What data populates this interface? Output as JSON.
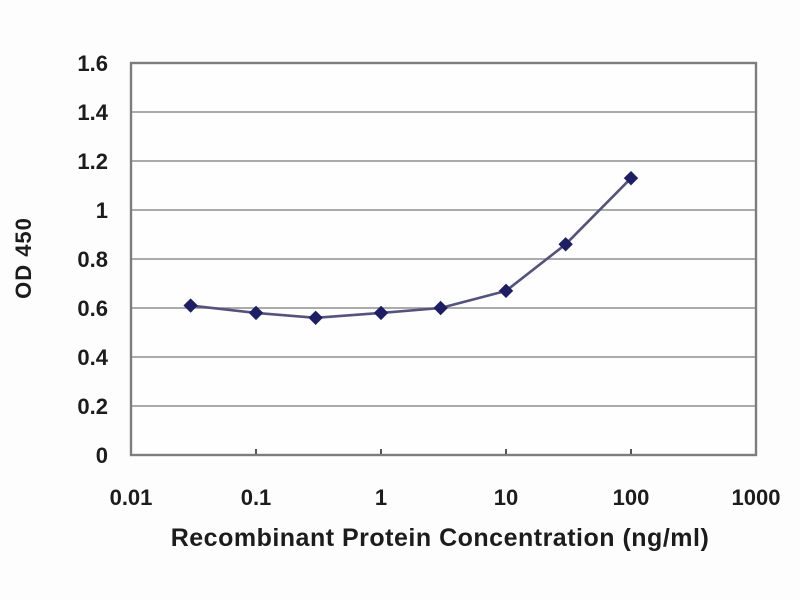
{
  "chart_data": {
    "type": "line",
    "title": "",
    "xlabel": "Recombinant Protein Concentration (ng/ml)",
    "ylabel": "OD 450",
    "x_scale": "log",
    "xlim": [
      0.01,
      1000
    ],
    "ylim": [
      0,
      1.6
    ],
    "grid": "horizontal",
    "legend": "none",
    "x_ticks": {
      "values": [
        0.01,
        0.1,
        1,
        10,
        100,
        1000
      ],
      "labels": [
        "0.01",
        "0.1",
        "1",
        "10",
        "100",
        "1000"
      ]
    },
    "y_ticks": {
      "values": [
        0,
        0.2,
        0.4,
        0.6,
        0.8,
        1,
        1.2,
        1.4,
        1.6
      ],
      "labels": [
        "0",
        "0.2",
        "0.4",
        "0.6",
        "0.8",
        "1",
        "1.2",
        "1.4",
        "1.6"
      ]
    },
    "series": [
      {
        "name": "OD450",
        "marker": "diamond",
        "x": [
          0.03,
          0.1,
          0.3,
          1,
          3,
          10,
          30,
          100
        ],
        "values": [
          0.61,
          0.58,
          0.56,
          0.58,
          0.6,
          0.67,
          0.86,
          1.13
        ]
      }
    ],
    "colors": {
      "line": "#53537c",
      "marker": "#1e1e64",
      "grid": "#8f8f8f",
      "border": "#7d7d7d",
      "text": "#1c1c1c",
      "plot_background": "#fefefe"
    }
  }
}
